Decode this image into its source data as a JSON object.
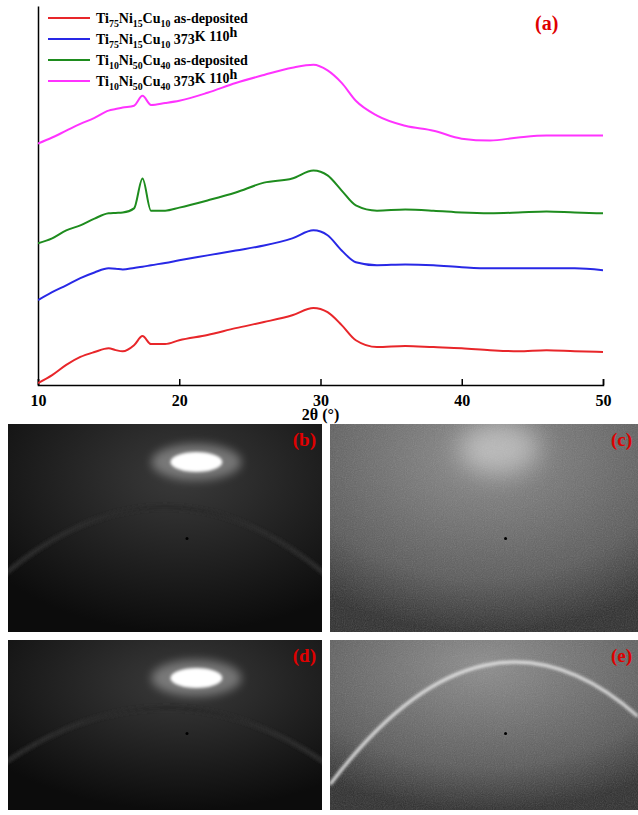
{
  "chart_data": {
    "type": "line",
    "annotations": [
      "(a)"
    ],
    "x_label": "2θ (°)",
    "x": [
      10,
      11,
      12,
      13,
      14,
      15,
      15.5,
      16,
      16.8,
      17.4,
      18,
      19,
      20,
      22,
      24,
      26,
      28,
      29.5,
      30.5,
      31.5,
      32.5,
      34,
      36,
      38,
      40,
      42,
      44,
      46,
      48,
      50
    ],
    "xlim": [
      10,
      50
    ],
    "xticks": [
      10,
      20,
      30,
      40,
      50
    ],
    "ylim": [
      0,
      100
    ],
    "tick_labels": "x",
    "legend": "upper left",
    "series": [
      {
        "name": "Ti75Ni15Cu10 as-deposited",
        "color": "#e8262a",
        "values": [
          0.5,
          2.6,
          5.3,
          7.4,
          8.7,
          9.7,
          9.2,
          8.9,
          10.5,
          12.9,
          10.8,
          10.8,
          11.8,
          13.2,
          15,
          16.6,
          18.4,
          20.3,
          19.2,
          15.8,
          11.8,
          10,
          10.3,
          10,
          9.7,
          9.2,
          8.9,
          9.2,
          8.9,
          8.7
        ]
      },
      {
        "name": "Ti75Ni15Cu10 373K 110h",
        "color": "#2828e6",
        "values": [
          22.4,
          24.5,
          26.3,
          28.2,
          29.7,
          30.8,
          30.7,
          30.5,
          30.9,
          31.2,
          31.6,
          32.2,
          32.9,
          34.2,
          35.5,
          36.8,
          38.7,
          40.8,
          39.5,
          35.5,
          32.4,
          31.6,
          31.8,
          31.6,
          31.1,
          30.8,
          30.8,
          30.8,
          30.8,
          30.3
        ]
      },
      {
        "name": "Ti10Ni50Cu40 as-deposited",
        "color": "#1e8c1e",
        "values": [
          37.4,
          38.7,
          40.8,
          42.1,
          43.9,
          45.3,
          45.4,
          45.5,
          46.6,
          54.5,
          46,
          46,
          46.8,
          48.7,
          50.8,
          53.4,
          54.5,
          56.6,
          55.3,
          51.3,
          47.4,
          46,
          46.3,
          46,
          45.5,
          45.3,
          45.5,
          45.8,
          45.5,
          45.3
        ]
      },
      {
        "name": "Ti10Ni50Cu40 373K 110h",
        "color": "#ff33ff",
        "values": [
          63.7,
          65.3,
          67.1,
          68.9,
          70.5,
          72.4,
          72.8,
          73.2,
          73.7,
          76.3,
          73.9,
          74.4,
          75,
          77.1,
          79.7,
          81.8,
          83.7,
          84.5,
          83,
          79.7,
          75,
          71.1,
          68.4,
          67.1,
          65,
          64.5,
          65.3,
          65.8,
          65.8,
          65.8
        ]
      }
    ]
  },
  "image_panels": [
    {
      "label": "(b)"
    },
    {
      "label": "(c)"
    },
    {
      "label": "(d)"
    },
    {
      "label": "(e)"
    }
  ]
}
